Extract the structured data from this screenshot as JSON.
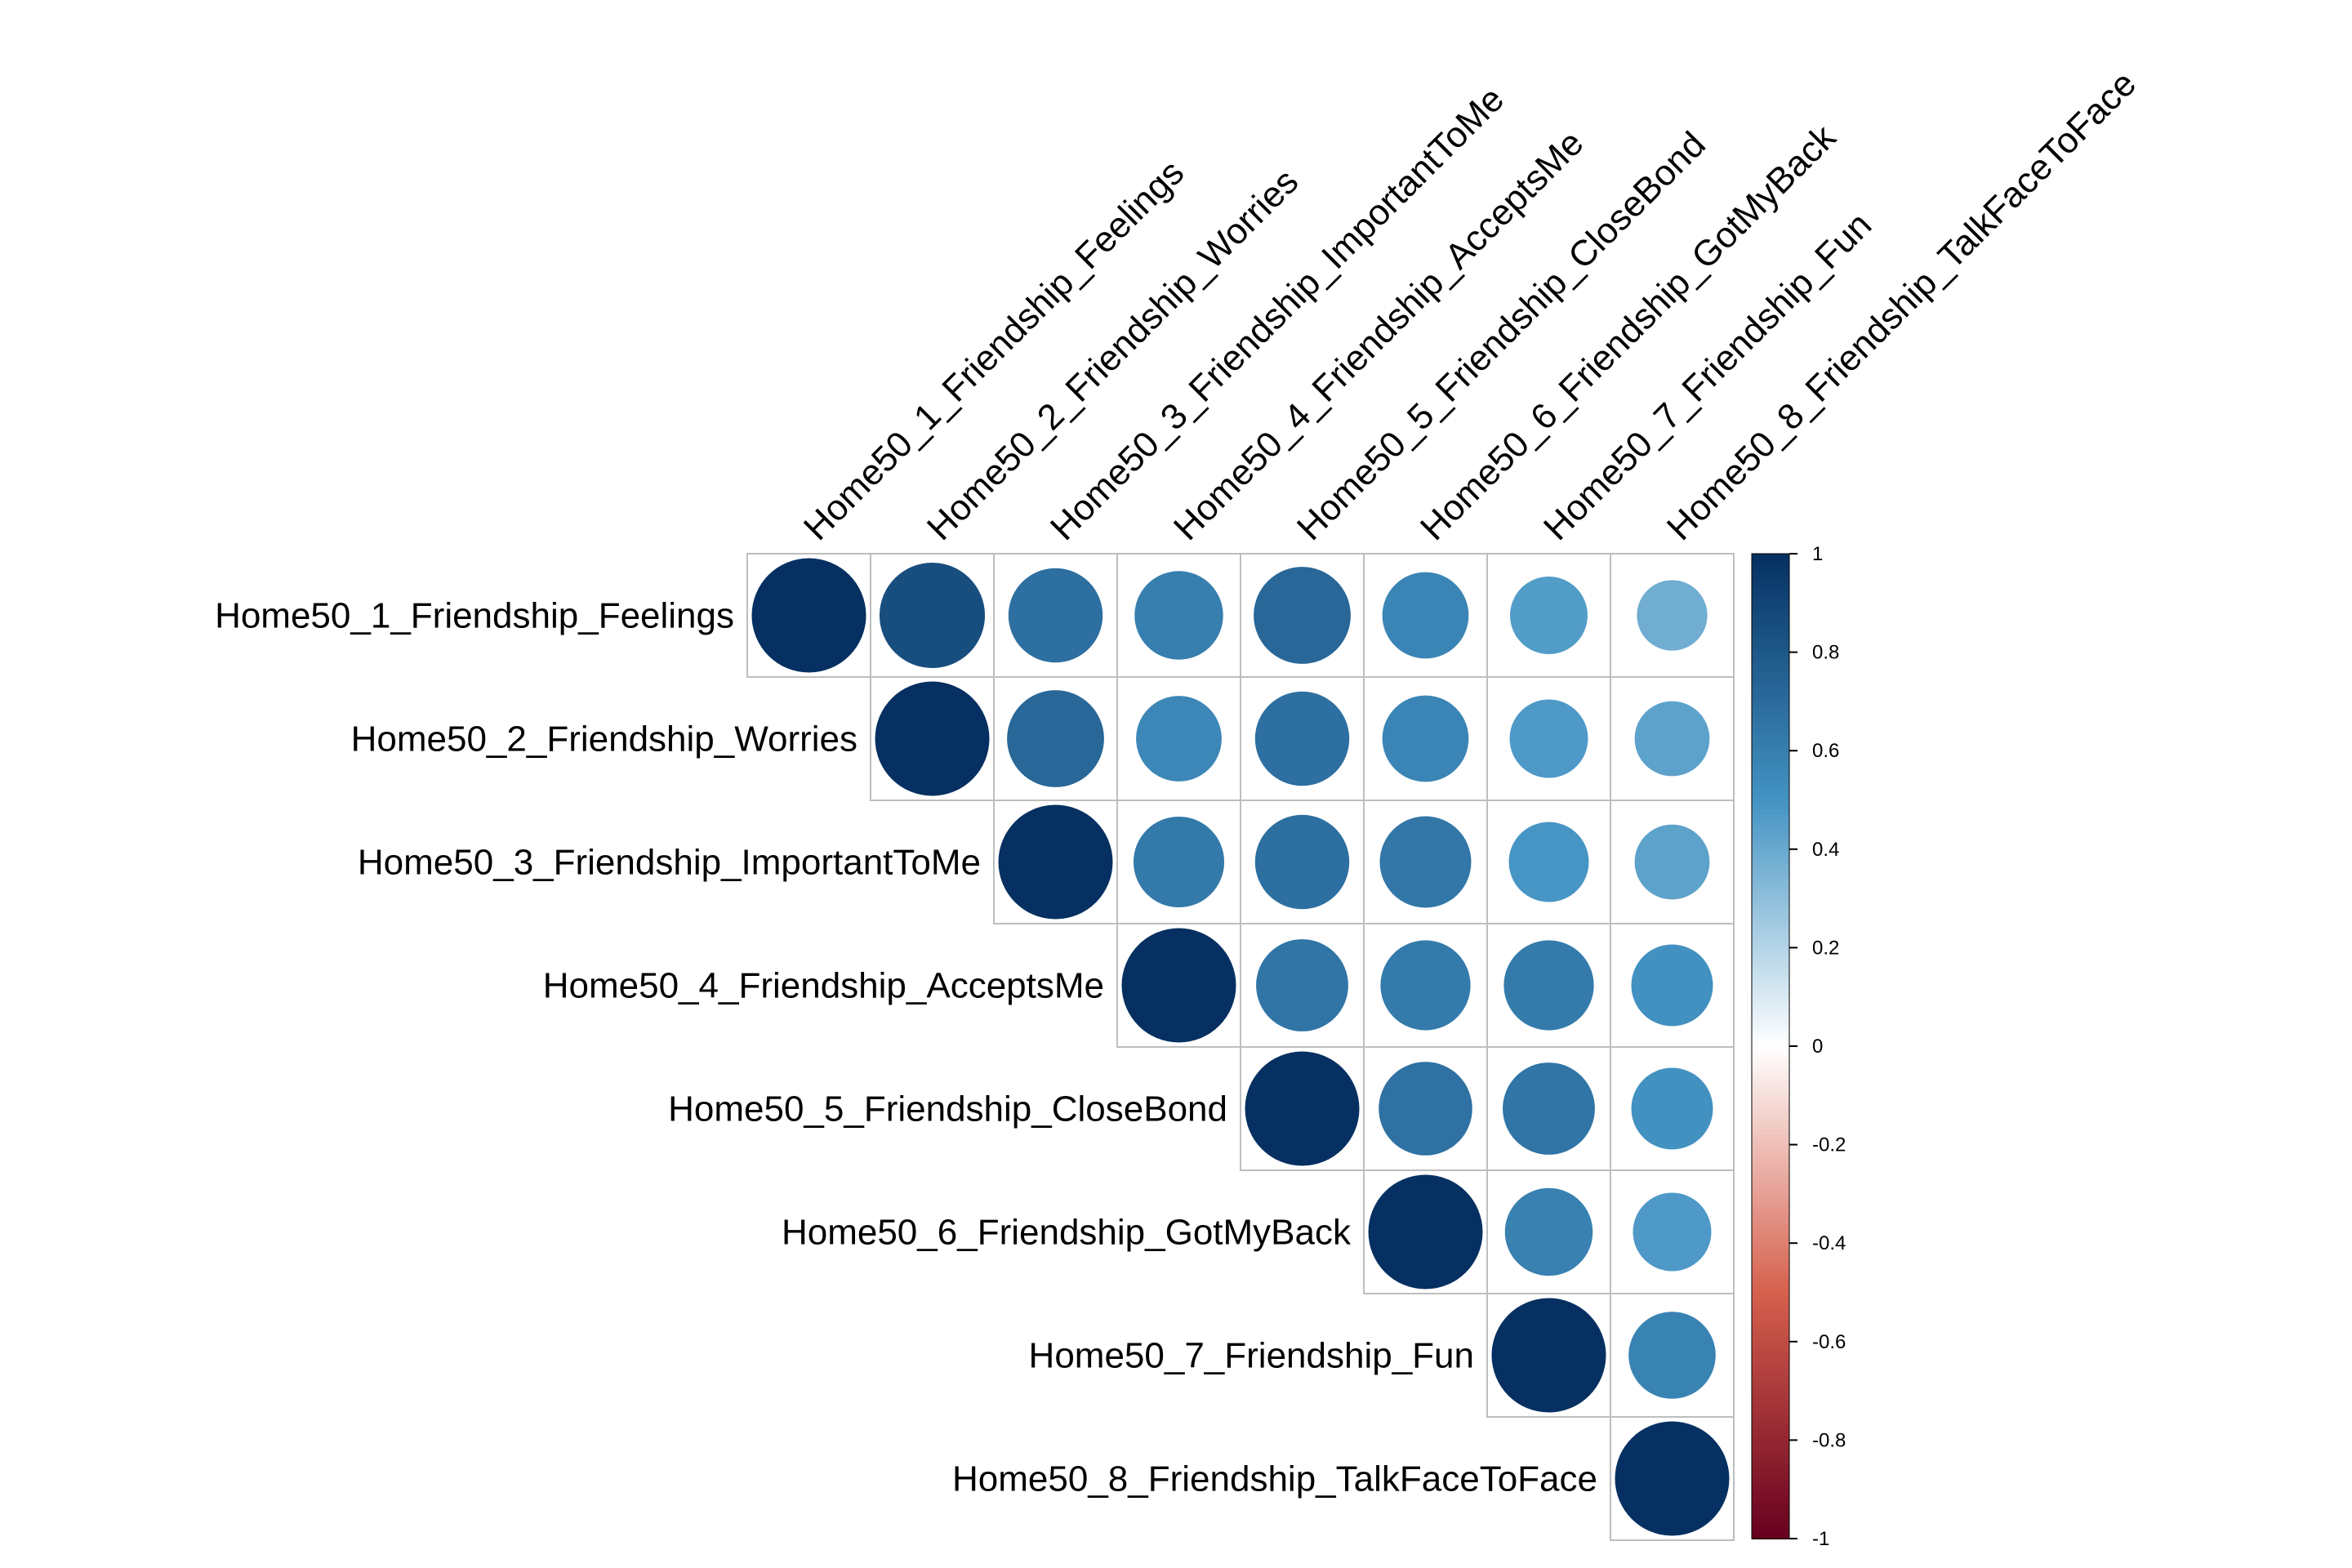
{
  "chart_data": {
    "type": "heatmap",
    "variables": [
      "Home50_1_Friendship_Feelings",
      "Home50_2_Friendship_Worries",
      "Home50_3_Friendship_ImportantToMe",
      "Home50_4_Friendship_AcceptsMe",
      "Home50_5_Friendship_CloseBond",
      "Home50_6_Friendship_GotMyBack",
      "Home50_7_Friendship_Fun",
      "Home50_8_Friendship_TalkFaceToFace"
    ],
    "matrix_shape": "upper-triangle",
    "marker": "circle",
    "values": [
      [
        1.0,
        0.85,
        0.68,
        0.6,
        0.72,
        0.57,
        0.46,
        0.38
      ],
      [
        null,
        1.0,
        0.72,
        0.56,
        0.68,
        0.57,
        0.47,
        0.43
      ],
      [
        null,
        null,
        1.0,
        0.63,
        0.68,
        0.64,
        0.49,
        0.43
      ],
      [
        null,
        null,
        null,
        1.0,
        0.65,
        0.62,
        0.62,
        0.51
      ],
      [
        null,
        null,
        null,
        null,
        1.0,
        0.67,
        0.65,
        0.51
      ],
      [
        null,
        null,
        null,
        null,
        null,
        1.0,
        0.59,
        0.47
      ],
      [
        null,
        null,
        null,
        null,
        null,
        null,
        1.0,
        0.58
      ],
      [
        null,
        null,
        null,
        null,
        null,
        null,
        null,
        1.0
      ]
    ],
    "colorbar": {
      "range": [
        -1,
        1
      ],
      "ticks": [
        "1",
        "0.8",
        "0.6",
        "0.4",
        "0.2",
        "0",
        "-0.2",
        "-0.4",
        "-0.6",
        "-0.8",
        "-1"
      ]
    },
    "colors": {
      "negative_end": "#67001F",
      "negative_mid": "#D6604D",
      "neutral": "#FFFFFF",
      "positive_mid": "#4393C3",
      "positive_end": "#053061",
      "grid": "#BEBEBE"
    }
  }
}
